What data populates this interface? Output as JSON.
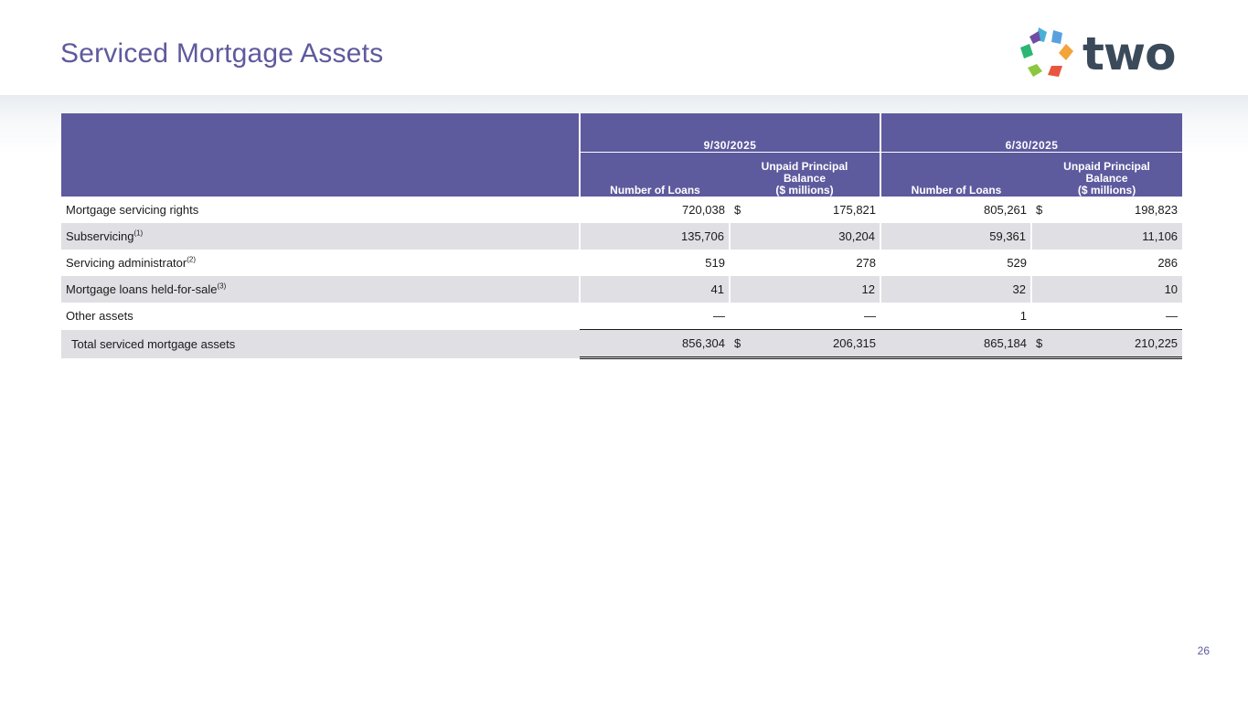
{
  "title": "Serviced Mortgage Assets",
  "logo": {
    "text": "two"
  },
  "colors": {
    "accent": "#5e5a9e",
    "row_shade": "#dfdfe4"
  },
  "table": {
    "periods": [
      "9/30/2025",
      "6/30/2025"
    ],
    "col_headers": {
      "loans": "Number of Loans",
      "upb_line1": "Unpaid Principal",
      "upb_line2": "Balance",
      "upb_line3": "($ millions)"
    },
    "rows": [
      {
        "label": "Mortgage servicing rights",
        "sup": "",
        "q3_loans": "720,038",
        "q3_cur": "$",
        "q3_upb": "175,821",
        "q2_loans": "805,261",
        "q2_cur": "$",
        "q2_upb": "198,823"
      },
      {
        "label": "Subservicing",
        "sup": "(1)",
        "q3_loans": "135,706",
        "q3_cur": "",
        "q3_upb": "30,204",
        "q2_loans": "59,361",
        "q2_cur": "",
        "q2_upb": "11,106"
      },
      {
        "label": "Servicing administrator",
        "sup": "(2)",
        "q3_loans": "519",
        "q3_cur": "",
        "q3_upb": "278",
        "q2_loans": "529",
        "q2_cur": "",
        "q2_upb": "286"
      },
      {
        "label": "Mortgage loans held-for-sale",
        "sup": "(3)",
        "q3_loans": "41",
        "q3_cur": "",
        "q3_upb": "12",
        "q2_loans": "32",
        "q2_cur": "",
        "q2_upb": "10"
      },
      {
        "label": "Other assets",
        "sup": "",
        "q3_loans": "—",
        "q3_cur": "",
        "q3_upb": "—",
        "q2_loans": "1",
        "q2_cur": "",
        "q2_upb": "—"
      },
      {
        "label": "Total serviced mortgage assets",
        "sup": "",
        "q3_loans": "856,304",
        "q3_cur": "$",
        "q3_upb": "206,315",
        "q2_loans": "865,184",
        "q2_cur": "$",
        "q2_upb": "210,225"
      }
    ]
  },
  "page_number": "26"
}
